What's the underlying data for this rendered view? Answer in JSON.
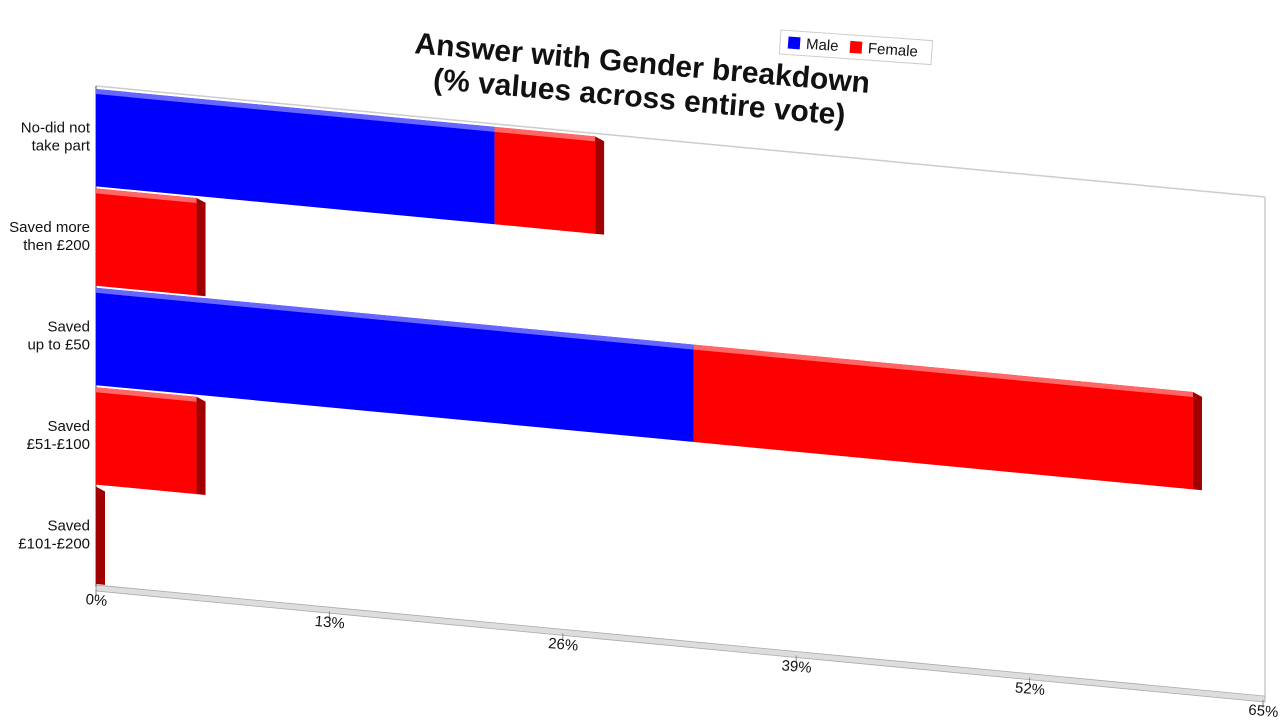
{
  "chart_data": {
    "type": "bar",
    "stacked": true,
    "orientation": "horizontal",
    "title": "Answer with Gender breakdown\n(% values across entire vote)",
    "categories": [
      "No-did not\ntake part",
      "Saved more\nthen £200",
      "Saved\nup to £50",
      "Saved\n£51-£100",
      "Saved\n£101-£200"
    ],
    "series": [
      {
        "name": "Male",
        "color": "#0000ff",
        "values": [
          22.2,
          0,
          33.3,
          0,
          0
        ]
      },
      {
        "name": "Female",
        "color": "#ff0000",
        "values": [
          5.6,
          5.6,
          27.8,
          5.6,
          0
        ]
      }
    ],
    "xlim": [
      0,
      65
    ],
    "xticks": [
      {
        "value": 0,
        "label": "0%"
      },
      {
        "value": 13,
        "label": "13%"
      },
      {
        "value": 26,
        "label": "26%"
      },
      {
        "value": 39,
        "label": "39%"
      },
      {
        "value": 52,
        "label": "52%"
      },
      {
        "value": 65,
        "label": "65%"
      }
    ],
    "legend": "top-right"
  }
}
